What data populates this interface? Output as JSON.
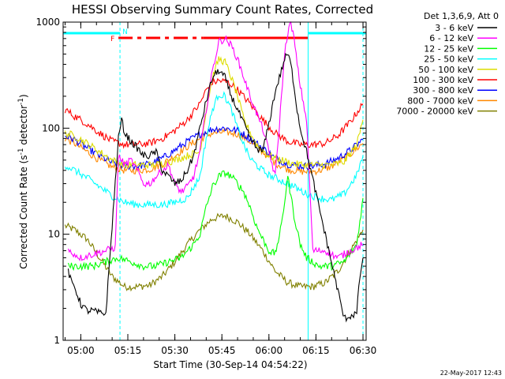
{
  "chart_data": {
    "type": "line",
    "title": "HESSI Observing Summary Count Rates, Corrected",
    "xlabel": "Start Time (30-Sep-14 04:54:22)",
    "ylabel": "Corrected Count Rate (s⁻¹ detector⁻¹)",
    "ylabel_main": "Corrected Count Rate (s",
    "ylabel_sup1": "-1",
    "ylabel_mid": " detector",
    "ylabel_sup2": "-1",
    "ylabel_end": ")",
    "y_scale": "log",
    "ylim": [
      1,
      1000
    ],
    "xlim": [
      "04:54:22",
      "06:31:00"
    ],
    "x_ticks": [
      "05:00",
      "05:15",
      "05:30",
      "05:45",
      "06:00",
      "06:15",
      "06:30"
    ],
    "y_ticks": [
      "1",
      "10",
      "100",
      "1000"
    ],
    "legend_header": "Det 1,3,6,9, Att 0",
    "legend_position": "right",
    "date_stamp": "22-May-2017 12:43",
    "flags": {
      "f_label": "F",
      "n_label": "N",
      "flag_color": "#ff0000",
      "night_color": "#00ffff",
      "flare_segments": [
        [
          "05:12:00",
          "05:39:00"
        ],
        [
          "05:39:00",
          "06:12:30"
        ]
      ],
      "night_segments": [
        [
          "04:54:22",
          "05:12:30"
        ],
        [
          "06:12:30",
          "06:31:00"
        ]
      ],
      "saa_boundaries": [
        "04:54:22",
        "05:12:30",
        "06:12:30",
        "06:30:00"
      ]
    },
    "series": [
      {
        "name": "3 - 6 keV",
        "color": "#000000",
        "x": [
          "04:56:00",
          "04:57:00",
          "04:58:00",
          "05:00:00",
          "05:02:00",
          "05:04:00",
          "05:06:00",
          "05:08:00",
          "05:12:00",
          "05:13:00",
          "05:14:00",
          "05:16:00",
          "05:18:00",
          "05:20:00",
          "05:22:00",
          "05:24:00",
          "05:26:00",
          "05:28:00",
          "05:30:00",
          "05:32:00",
          "05:34:00",
          "05:36:00",
          "05:38:00",
          "05:40:00",
          "05:42:00",
          "05:44:00",
          "05:46:00",
          "05:48:00",
          "05:50:00",
          "05:52:00",
          "05:54:00",
          "05:56:00",
          "05:58:00",
          "06:00:00",
          "06:02:00",
          "06:04:00",
          "06:05:00",
          "06:06:00",
          "06:07:00",
          "06:08:00",
          "06:09:00",
          "06:10:00",
          "06:12:00",
          "06:24:00",
          "06:26:00",
          "06:28:00",
          "06:29:00",
          "06:30:00"
        ],
        "y": [
          4.5,
          3.5,
          3.2,
          2.2,
          1.9,
          1.9,
          1.8,
          1.8,
          80,
          120,
          90,
          75,
          65,
          55,
          55,
          60,
          40,
          35,
          30,
          32,
          40,
          55,
          100,
          180,
          300,
          350,
          300,
          200,
          150,
          110,
          80,
          65,
          60,
          110,
          220,
          350,
          450,
          500,
          400,
          250,
          150,
          100,
          60,
          1.6,
          1.7,
          1.8,
          4,
          6
        ]
      },
      {
        "name": "6 - 12 keV",
        "color": "#ff00ff",
        "x": [
          "04:56:00",
          "05:00:00",
          "05:04:00",
          "05:08:00",
          "05:11:00",
          "05:12:00",
          "05:14:00",
          "05:16:00",
          "05:18:00",
          "05:20:00",
          "05:22:00",
          "05:24:00",
          "05:26:00",
          "05:28:00",
          "05:30:00",
          "05:32:00",
          "05:34:00",
          "05:36:00",
          "05:38:00",
          "05:40:00",
          "05:42:00",
          "05:44:00",
          "05:46:00",
          "05:48:00",
          "05:50:00",
          "05:52:00",
          "05:54:00",
          "05:56:00",
          "05:58:00",
          "06:00:00",
          "06:02:00",
          "06:03:00",
          "06:04:00",
          "06:05:00",
          "06:06:00",
          "06:07:00",
          "06:08:00",
          "06:09:00",
          "06:10:00",
          "06:12:00",
          "06:14:00",
          "06:18:00",
          "06:22:00",
          "06:26:00",
          "06:30:00"
        ],
        "y": [
          7,
          6,
          6.5,
          7,
          7.5,
          55,
          45,
          50,
          40,
          30,
          30,
          35,
          40,
          45,
          30,
          25,
          28,
          35,
          60,
          150,
          350,
          650,
          700,
          600,
          450,
          300,
          200,
          140,
          100,
          60,
          35,
          80,
          200,
          500,
          800,
          1000,
          700,
          400,
          250,
          120,
          7,
          7,
          6,
          7,
          8
        ]
      },
      {
        "name": "12 - 25 keV",
        "color": "#00ff00",
        "x": [
          "04:56:00",
          "05:00:00",
          "05:04:00",
          "05:08:00",
          "05:12:00",
          "05:16:00",
          "05:20:00",
          "05:24:00",
          "05:28:00",
          "05:32:00",
          "05:36:00",
          "05:38:00",
          "05:40:00",
          "05:42:00",
          "05:44:00",
          "05:46:00",
          "05:48:00",
          "05:50:00",
          "05:52:00",
          "05:54:00",
          "05:56:00",
          "05:58:00",
          "06:00:00",
          "06:02:00",
          "06:04:00",
          "06:06:00",
          "06:08:00",
          "06:10:00",
          "06:12:00",
          "06:16:00",
          "06:20:00",
          "06:24:00",
          "06:28:00",
          "06:30:00"
        ],
        "y": [
          5,
          5,
          5,
          5.5,
          6,
          5.5,
          5,
          5,
          5.5,
          6,
          8,
          10,
          18,
          28,
          35,
          38,
          35,
          30,
          25,
          18,
          12,
          9,
          7,
          6.5,
          12,
          35,
          15,
          8,
          6,
          5,
          5,
          5.5,
          8,
          22
        ]
      },
      {
        "name": "25 - 50 keV",
        "color": "#00ffff",
        "x": [
          "04:55:00",
          "04:58:00",
          "05:02:00",
          "05:06:00",
          "05:10:00",
          "05:14:00",
          "05:18:00",
          "05:22:00",
          "05:26:00",
          "05:30:00",
          "05:34:00",
          "05:38:00",
          "05:40:00",
          "05:42:00",
          "05:44:00",
          "05:46:00",
          "05:48:00",
          "05:50:00",
          "05:52:00",
          "05:54:00",
          "05:56:00",
          "05:58:00",
          "06:00:00",
          "06:04:00",
          "06:08:00",
          "06:12:00",
          "06:16:00",
          "06:20:00",
          "06:24:00",
          "06:28:00",
          "06:30:00"
        ],
        "y": [
          45,
          40,
          34,
          28,
          23,
          20,
          19,
          19,
          19,
          20,
          22,
          35,
          80,
          150,
          210,
          200,
          150,
          100,
          70,
          52,
          45,
          40,
          36,
          32,
          28,
          24,
          22,
          21,
          24,
          36,
          55
        ]
      },
      {
        "name": "50 - 100 keV",
        "color": "#dddd00",
        "x": [
          "04:55:00",
          "04:58:00",
          "05:02:00",
          "05:06:00",
          "05:10:00",
          "05:14:00",
          "05:18:00",
          "05:22:00",
          "05:26:00",
          "05:30:00",
          "05:34:00",
          "05:38:00",
          "05:40:00",
          "05:42:00",
          "05:44:00",
          "05:46:00",
          "05:48:00",
          "05:50:00",
          "05:52:00",
          "05:56:00",
          "06:00:00",
          "06:04:00",
          "06:08:00",
          "06:12:00",
          "06:16:00",
          "06:20:00",
          "06:24:00",
          "06:28:00",
          "06:30:00"
        ],
        "y": [
          90,
          85,
          72,
          60,
          50,
          45,
          45,
          45,
          46,
          50,
          55,
          60,
          150,
          300,
          450,
          420,
          300,
          200,
          120,
          70,
          55,
          50,
          46,
          45,
          45,
          45,
          48,
          70,
          120
        ]
      },
      {
        "name": "100 - 300 keV",
        "color": "#ff0000",
        "x": [
          "04:55:00",
          "04:58:00",
          "05:02:00",
          "05:06:00",
          "05:10:00",
          "05:14:00",
          "05:18:00",
          "05:22:00",
          "05:26:00",
          "05:30:00",
          "05:34:00",
          "05:38:00",
          "05:40:00",
          "05:42:00",
          "05:44:00",
          "05:46:00",
          "05:48:00",
          "05:50:00",
          "05:54:00",
          "05:58:00",
          "06:02:00",
          "06:06:00",
          "06:10:00",
          "06:14:00",
          "06:18:00",
          "06:22:00",
          "06:26:00",
          "06:30:00"
        ],
        "y": [
          150,
          130,
          110,
          90,
          75,
          70,
          70,
          72,
          80,
          95,
          120,
          170,
          230,
          270,
          280,
          275,
          260,
          230,
          170,
          120,
          90,
          75,
          70,
          70,
          72,
          85,
          115,
          170
        ]
      },
      {
        "name": "300 - 800 keV",
        "color": "#0000ff",
        "x": [
          "04:55:00",
          "04:58:00",
          "05:02:00",
          "05:06:00",
          "05:10:00",
          "05:14:00",
          "05:18:00",
          "05:22:00",
          "05:26:00",
          "05:30:00",
          "05:34:00",
          "05:38:00",
          "05:42:00",
          "05:46:00",
          "05:50:00",
          "05:54:00",
          "05:58:00",
          "06:02:00",
          "06:06:00",
          "06:10:00",
          "06:14:00",
          "06:18:00",
          "06:22:00",
          "06:26:00",
          "06:30:00"
        ],
        "y": [
          85,
          78,
          65,
          55,
          47,
          44,
          44,
          46,
          52,
          62,
          75,
          88,
          98,
          100,
          95,
          80,
          65,
          52,
          46,
          44,
          44,
          46,
          52,
          62,
          78
        ]
      },
      {
        "name": "800 - 7000 keV",
        "color": "#ff8800",
        "x": [
          "04:55:00",
          "04:58:00",
          "05:02:00",
          "05:06:00",
          "05:10:00",
          "05:14:00",
          "05:18:00",
          "05:22:00",
          "05:26:00",
          "05:30:00",
          "05:34:00",
          "05:38:00",
          "05:42:00",
          "05:46:00",
          "05:50:00",
          "05:54:00",
          "05:58:00",
          "06:02:00",
          "06:06:00",
          "06:10:00",
          "06:14:00",
          "06:18:00",
          "06:22:00",
          "06:26:00",
          "06:30:00"
        ],
        "y": [
          80,
          72,
          60,
          50,
          43,
          40,
          40,
          41,
          46,
          55,
          67,
          80,
          90,
          92,
          88,
          75,
          60,
          47,
          41,
          39,
          39,
          41,
          47,
          57,
          72
        ]
      },
      {
        "name": "7000 - 20000 keV",
        "color": "#808000",
        "x": [
          "04:55:00",
          "04:58:00",
          "05:02:00",
          "05:06:00",
          "05:10:00",
          "05:14:00",
          "05:18:00",
          "05:22:00",
          "05:26:00",
          "05:30:00",
          "05:34:00",
          "05:38:00",
          "05:42:00",
          "05:46:00",
          "05:50:00",
          "05:54:00",
          "05:58:00",
          "06:02:00",
          "06:06:00",
          "06:10:00",
          "06:14:00",
          "06:18:00",
          "06:22:00",
          "06:26:00",
          "06:30:00"
        ],
        "y": [
          12,
          11,
          9,
          6,
          4,
          3.2,
          3.2,
          3.3,
          4,
          5.5,
          8,
          11,
          14,
          15,
          13,
          10,
          7,
          4.5,
          3.5,
          3.2,
          3.2,
          3.5,
          4.5,
          7,
          11
        ]
      }
    ]
  }
}
